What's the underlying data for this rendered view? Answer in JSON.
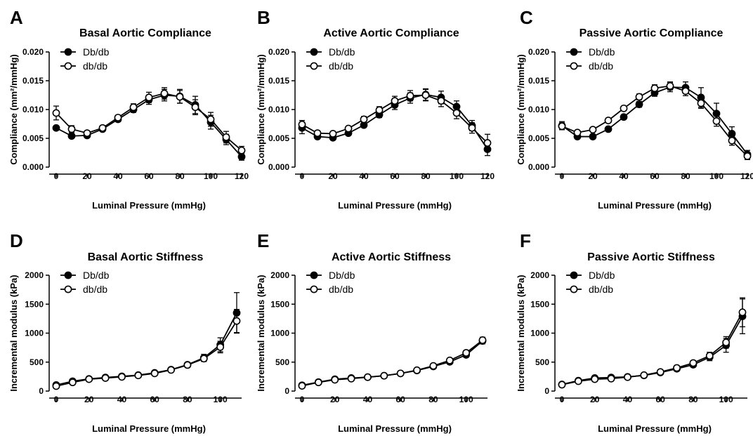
{
  "figure": {
    "x_axis_label": "Luminal Pressure (mmHg)",
    "compliance_y_label": "Compliance (mm²/mmHg)",
    "stiffness_y_label": "Incremental modulus (kPa)",
    "legend": {
      "filled": "Db/db",
      "open": "db/db"
    }
  },
  "colors": {
    "line": "#000000",
    "open_fill": "#ffffff"
  },
  "chart_data": [
    {
      "letter": "A",
      "title": "Basal Aortic Compliance",
      "type": "line",
      "xlabel": "Luminal Pressure (mmHg)",
      "ylabel": "Compliance (mm²/mmHg)",
      "xlim": [
        0,
        120
      ],
      "ylim": [
        0,
        0.02
      ],
      "x_ticks": [
        0,
        20,
        40,
        60,
        80,
        100,
        120
      ],
      "y_ticks": [
        "0.000",
        "0.005",
        "0.010",
        "0.015",
        "0.020"
      ],
      "x": [
        0,
        10,
        20,
        30,
        40,
        50,
        60,
        70,
        80,
        90,
        100,
        110,
        120
      ],
      "series": [
        {
          "name": "Db/db",
          "marker": "filled",
          "values": [
            0.0068,
            0.0054,
            0.0055,
            0.0066,
            0.0083,
            0.01,
            0.0117,
            0.0125,
            0.0123,
            0.0108,
            0.0078,
            0.0048,
            0.0018
          ],
          "errors": [
            0.0003,
            0.0003,
            0.0003,
            0.0003,
            0.0004,
            0.0005,
            0.0008,
            0.001,
            0.0012,
            0.0015,
            0.0012,
            0.0009,
            0.0006
          ]
        },
        {
          "name": "db/db",
          "marker": "open",
          "values": [
            0.0094,
            0.0066,
            0.0059,
            0.0068,
            0.0086,
            0.0104,
            0.0121,
            0.0128,
            0.0122,
            0.0104,
            0.0083,
            0.0052,
            0.0029
          ],
          "errors": [
            0.0012,
            0.0006,
            0.0004,
            0.0004,
            0.0004,
            0.0006,
            0.0009,
            0.001,
            0.0011,
            0.0013,
            0.0012,
            0.001,
            0.0007
          ]
        }
      ]
    },
    {
      "letter": "B",
      "title": "Active Aortic Compliance",
      "type": "line",
      "xlabel": "Luminal Pressure (mmHg)",
      "ylabel": "Compliance (mm²/mmHg)",
      "xlim": [
        0,
        120
      ],
      "ylim": [
        0,
        0.02
      ],
      "x_ticks": [
        0,
        20,
        40,
        60,
        80,
        100,
        120
      ],
      "y_ticks": [
        "0.000",
        "0.005",
        "0.010",
        "0.015",
        "0.020"
      ],
      "x": [
        0,
        10,
        20,
        30,
        40,
        50,
        60,
        70,
        80,
        90,
        100,
        110,
        120
      ],
      "series": [
        {
          "name": "Db/db",
          "marker": "filled",
          "values": [
            0.0068,
            0.0053,
            0.0051,
            0.0059,
            0.0073,
            0.0091,
            0.0108,
            0.012,
            0.0126,
            0.0121,
            0.0105,
            0.0072,
            0.0031
          ],
          "errors": [
            0.001,
            0.0004,
            0.0003,
            0.0003,
            0.0004,
            0.0005,
            0.0008,
            0.0009,
            0.001,
            0.0011,
            0.001,
            0.0009,
            0.0011
          ]
        },
        {
          "name": "db/db",
          "marker": "open",
          "values": [
            0.0074,
            0.0059,
            0.0058,
            0.0067,
            0.0083,
            0.0099,
            0.0115,
            0.0124,
            0.0125,
            0.0115,
            0.0094,
            0.0068,
            0.0042
          ],
          "errors": [
            0.0007,
            0.0004,
            0.0003,
            0.0003,
            0.0005,
            0.0006,
            0.0008,
            0.0009,
            0.001,
            0.001,
            0.001,
            0.0009,
            0.0015
          ]
        }
      ]
    },
    {
      "letter": "C",
      "title": "Passive Aortic Compliance",
      "type": "line",
      "xlabel": "Luminal Pressure (mmHg)",
      "ylabel": "Compliance (mm²/mmHg)",
      "xlim": [
        0,
        120
      ],
      "ylim": [
        0,
        0.02
      ],
      "x_ticks": [
        0,
        20,
        40,
        60,
        80,
        100,
        120
      ],
      "y_ticks": [
        "0.000",
        "0.005",
        "0.010",
        "0.015",
        "0.020"
      ],
      "x": [
        0,
        10,
        20,
        30,
        40,
        50,
        60,
        70,
        80,
        90,
        100,
        110,
        120
      ],
      "series": [
        {
          "name": "Db/db",
          "marker": "filled",
          "values": [
            0.0072,
            0.0053,
            0.0053,
            0.0066,
            0.0087,
            0.0109,
            0.0129,
            0.0139,
            0.0138,
            0.0121,
            0.0093,
            0.0058,
            0.0022
          ],
          "errors": [
            0.0007,
            0.0003,
            0.0003,
            0.0003,
            0.0004,
            0.0005,
            0.0006,
            0.0008,
            0.001,
            0.0017,
            0.0018,
            0.0012,
            0.0007
          ]
        },
        {
          "name": "db/db",
          "marker": "open",
          "values": [
            0.0071,
            0.006,
            0.0065,
            0.0081,
            0.0102,
            0.0122,
            0.0137,
            0.0141,
            0.0132,
            0.0111,
            0.008,
            0.0046,
            0.0019
          ],
          "errors": [
            0.0006,
            0.0003,
            0.0003,
            0.0004,
            0.0004,
            0.0005,
            0.0006,
            0.0007,
            0.0008,
            0.0009,
            0.0009,
            0.0008,
            0.0006
          ]
        }
      ]
    },
    {
      "letter": "D",
      "title": "Basal Aortic Stiffness",
      "type": "line",
      "xlabel": "Luminal Pressure (mmHg)",
      "ylabel": "Incremental modulus (kPa)",
      "xlim": [
        0,
        113
      ],
      "ylim": [
        0,
        2000
      ],
      "x_ticks": [
        0,
        20,
        40,
        60,
        80,
        100
      ],
      "y_ticks": [
        "0",
        "500",
        "1000",
        "1500",
        "2000"
      ],
      "x": [
        0,
        10,
        20,
        30,
        40,
        50,
        60,
        70,
        80,
        90,
        100,
        110
      ],
      "series": [
        {
          "name": "Db/db",
          "marker": "filled",
          "values": [
            105,
            170,
            210,
            235,
            255,
            275,
            315,
            370,
            455,
            575,
            800,
            1350
          ],
          "errors": [
            20,
            20,
            20,
            20,
            25,
            25,
            30,
            35,
            40,
            60,
            120,
            350
          ]
        },
        {
          "name": "db/db",
          "marker": "open",
          "values": [
            85,
            150,
            205,
            225,
            245,
            270,
            305,
            365,
            450,
            560,
            760,
            1210
          ],
          "errors": [
            15,
            20,
            20,
            20,
            20,
            25,
            30,
            35,
            40,
            50,
            100,
            200
          ]
        }
      ]
    },
    {
      "letter": "E",
      "title": "Active Aortic Stiffness",
      "type": "line",
      "xlabel": "Luminal Pressure (mmHg)",
      "ylabel": "Incremental modulus (kPa)",
      "xlim": [
        0,
        113
      ],
      "ylim": [
        0,
        2000
      ],
      "x_ticks": [
        0,
        20,
        40,
        60,
        80,
        100
      ],
      "y_ticks": [
        "0",
        "500",
        "1000",
        "1500",
        "2000"
      ],
      "x": [
        0,
        10,
        20,
        30,
        40,
        50,
        60,
        70,
        80,
        90,
        100,
        110
      ],
      "series": [
        {
          "name": "Db/db",
          "marker": "filled",
          "values": [
            100,
            155,
            205,
            225,
            240,
            265,
            305,
            355,
            425,
            505,
            625,
            865
          ],
          "errors": [
            15,
            15,
            15,
            15,
            20,
            20,
            20,
            25,
            25,
            30,
            40,
            50
          ]
        },
        {
          "name": "db/db",
          "marker": "open",
          "values": [
            90,
            150,
            195,
            215,
            240,
            265,
            305,
            360,
            435,
            530,
            660,
            880
          ],
          "errors": [
            15,
            15,
            15,
            15,
            20,
            20,
            20,
            25,
            25,
            30,
            40,
            50
          ]
        }
      ]
    },
    {
      "letter": "F",
      "title": "Passive Aortic Stiffness",
      "type": "line",
      "xlabel": "Luminal Pressure (mmHg)",
      "ylabel": "Incremental modulus (kPa)",
      "xlim": [
        0,
        113
      ],
      "ylim": [
        0,
        2000
      ],
      "x_ticks": [
        0,
        20,
        40,
        60,
        80,
        100
      ],
      "y_ticks": [
        "0",
        "500",
        "1000",
        "1500",
        "2000"
      ],
      "x": [
        0,
        10,
        20,
        30,
        40,
        50,
        60,
        70,
        80,
        90,
        100,
        110
      ],
      "series": [
        {
          "name": "Db/db",
          "marker": "filled",
          "values": [
            115,
            180,
            225,
            235,
            245,
            270,
            320,
            385,
            455,
            585,
            790,
            1290
          ],
          "errors": [
            20,
            20,
            20,
            20,
            20,
            25,
            30,
            35,
            40,
            60,
            120,
            300
          ]
        },
        {
          "name": "db/db",
          "marker": "open",
          "values": [
            110,
            170,
            205,
            215,
            240,
            275,
            330,
            400,
            485,
            610,
            840,
            1360
          ],
          "errors": [
            20,
            20,
            20,
            20,
            20,
            25,
            30,
            35,
            40,
            60,
            100,
            250
          ]
        }
      ]
    }
  ]
}
